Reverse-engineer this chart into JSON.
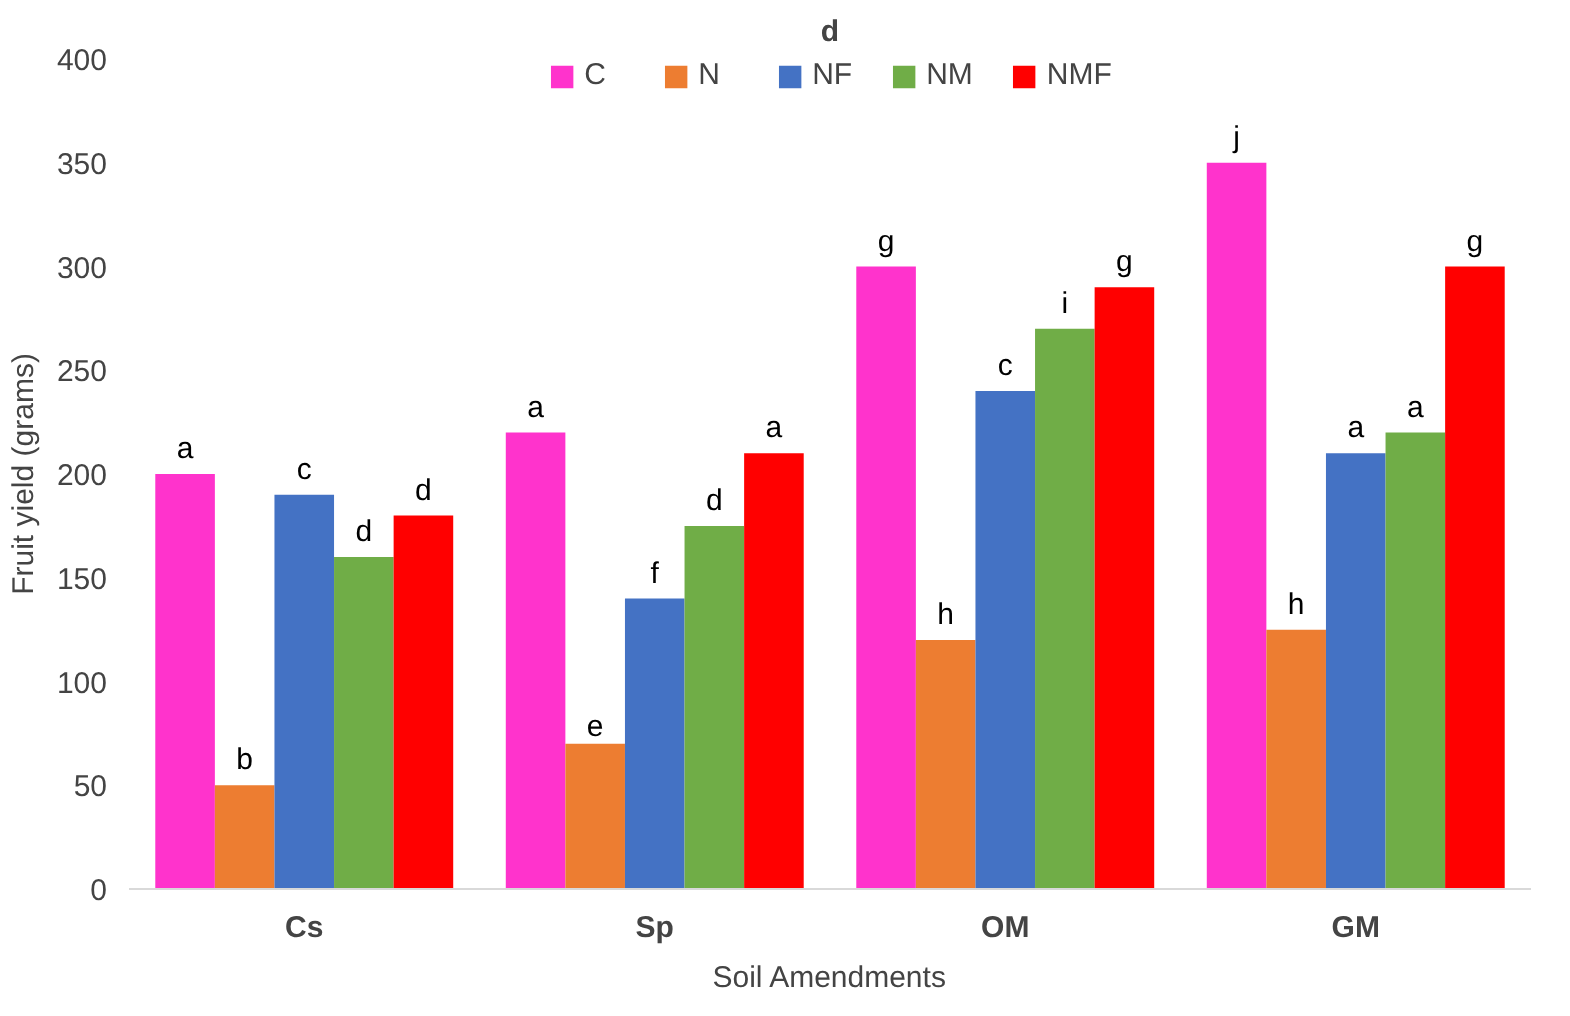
{
  "chart_data": {
    "type": "bar",
    "title": "d",
    "xlabel": "Soil Amendments",
    "ylabel": "Fruit yield (grams)",
    "categories": [
      "Cs",
      "Sp",
      "OM",
      "GM"
    ],
    "series": [
      {
        "name": "C",
        "color": "#ff33cc",
        "values": [
          200,
          220,
          300,
          350
        ],
        "value_labels": [
          "a",
          "a",
          "g",
          "j"
        ]
      },
      {
        "name": "N",
        "color": "#ed7d31",
        "values": [
          50,
          70,
          120,
          125
        ],
        "value_labels": [
          "b",
          "e",
          "h",
          "h"
        ]
      },
      {
        "name": "NF",
        "color": "#4472c4",
        "values": [
          190,
          140,
          240,
          210
        ],
        "value_labels": [
          "c",
          "f",
          "c",
          "a"
        ]
      },
      {
        "name": "NM",
        "color": "#70ad47",
        "values": [
          160,
          175,
          270,
          220
        ],
        "value_labels": [
          "d",
          "d",
          "i",
          "a"
        ]
      },
      {
        "name": "NMF",
        "color": "#ff0000",
        "values": [
          180,
          210,
          290,
          300
        ],
        "value_labels": [
          "d",
          "a",
          "g",
          "g"
        ]
      }
    ],
    "ylim": [
      0,
      400
    ],
    "yticks": [
      0,
      50,
      100,
      150,
      200,
      250,
      300,
      350,
      400
    ],
    "grid": false,
    "legend": "top"
  }
}
